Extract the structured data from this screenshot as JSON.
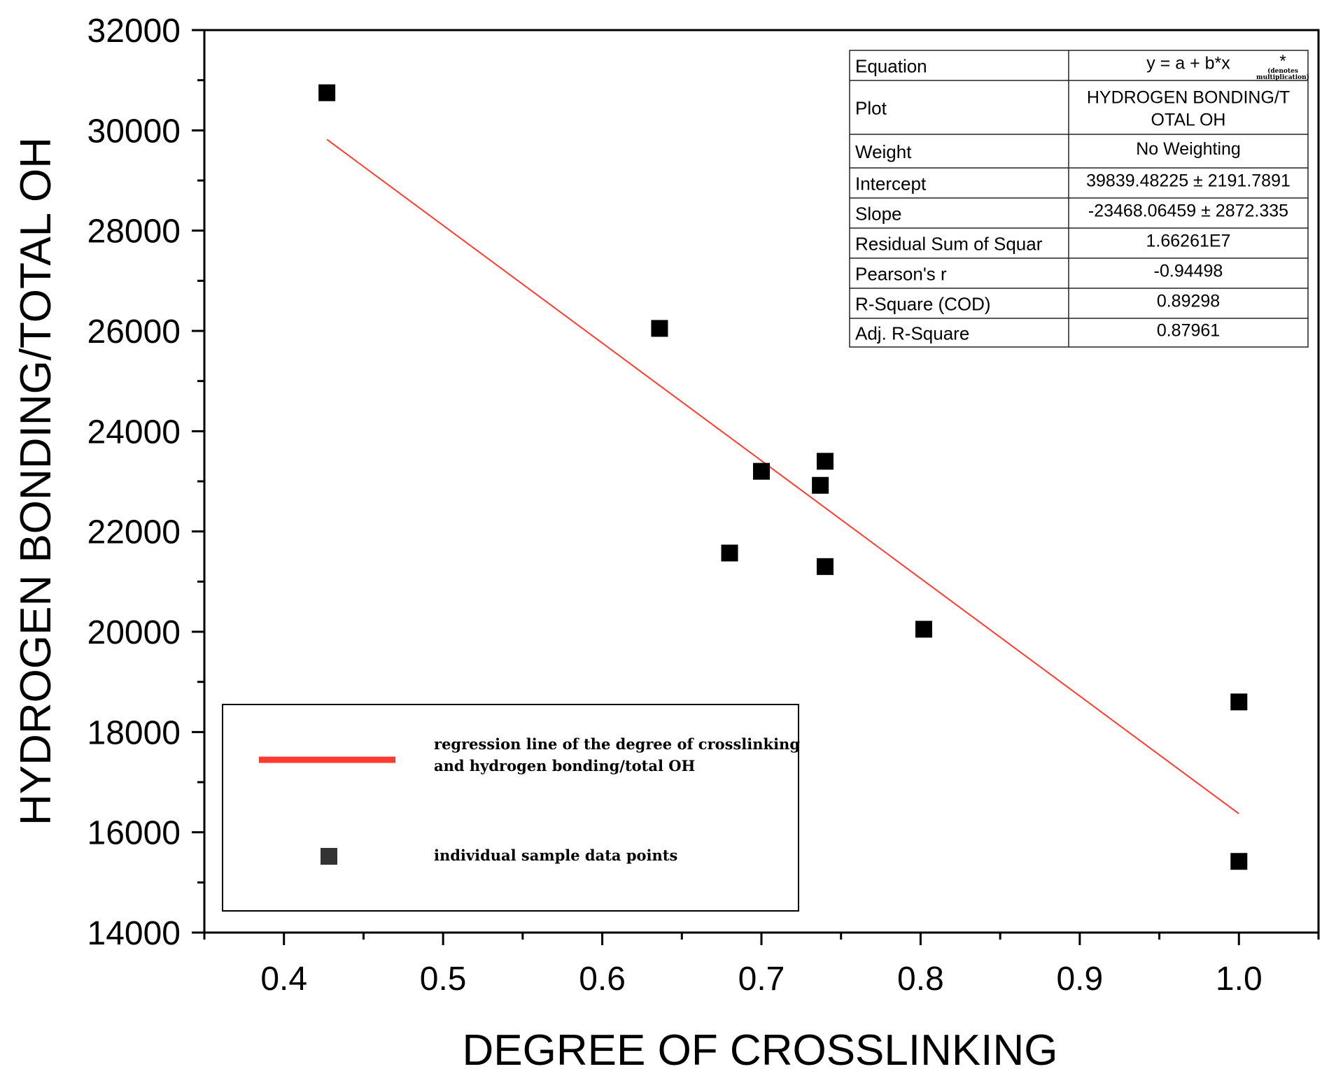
{
  "chart_data": {
    "type": "scatter",
    "xlabel": "DEGREE OF CROSSLINKING",
    "ylabel": "HYDROGEN BONDING/TOTAL OH",
    "xlim": [
      0.35,
      1.05
    ],
    "ylim": [
      14000,
      32000
    ],
    "x_ticks": [
      0.4,
      0.5,
      0.6,
      0.7,
      0.8,
      0.9,
      1.0
    ],
    "x_tick_labels": [
      "0.4",
      "0.5",
      "0.6",
      "0.7",
      "0.8",
      "0.9",
      "1.0"
    ],
    "y_ticks": [
      14000,
      16000,
      18000,
      20000,
      22000,
      24000,
      26000,
      28000,
      30000,
      32000
    ],
    "y_tick_labels": [
      "14000",
      "16000",
      "18000",
      "20000",
      "22000",
      "24000",
      "26000",
      "28000",
      "30000",
      "32000"
    ],
    "series": [
      {
        "name": "individual sample data points",
        "color": "#000000",
        "marker": "square",
        "points": [
          {
            "x": 0.427,
            "y": 30750
          },
          {
            "x": 0.636,
            "y": 26050
          },
          {
            "x": 0.68,
            "y": 21570
          },
          {
            "x": 0.7,
            "y": 23200
          },
          {
            "x": 0.737,
            "y": 22920
          },
          {
            "x": 0.74,
            "y": 23400
          },
          {
            "x": 0.74,
            "y": 21300
          },
          {
            "x": 0.802,
            "y": 20050
          },
          {
            "x": 1.0,
            "y": 18600
          },
          {
            "x": 1.0,
            "y": 15420
          }
        ]
      }
    ],
    "regression": {
      "name": "regression line of the degree of crosslinking and hydrogen bonding/total OH",
      "label_line1": "regression line of the degree of crosslinking",
      "label_line2": "and hydrogen bonding/total OH",
      "color": "#ff3b30",
      "intercept": 39839.48225,
      "slope": -23468.06459,
      "x_range": [
        0.427,
        1.0
      ]
    },
    "legend": {
      "placement": "bottom-left",
      "entries": [
        {
          "label_line1": "regression line of the degree of crosslinking",
          "label_line2": "and hydrogen bonding/total OH",
          "color": "#ff3b30",
          "symbol": "line"
        },
        {
          "label_line1": "individual sample data points",
          "label_line2": "",
          "color": "#000000",
          "symbol": "square"
        }
      ]
    },
    "stats_table": {
      "placement": "top-right",
      "rows": [
        {
          "label": "Equation",
          "value": "y = a + b*x",
          "star": "*",
          "note_line1": "(denotes",
          "note_line2": "multiplication)"
        },
        {
          "label": "Plot",
          "value_line1": "HYDROGEN BONDING/T",
          "value_line2": "OTAL OH"
        },
        {
          "label": "Weight",
          "value": "No Weighting"
        },
        {
          "label": "Intercept",
          "value": "39839.48225 ± 2191.7891"
        },
        {
          "label": "Slope",
          "value": "-23468.06459 ± 2872.335"
        },
        {
          "label": "Residual Sum of Squar",
          "value": "1.66261E7"
        },
        {
          "label": "Pearson's r",
          "value": "-0.94498"
        },
        {
          "label": "R-Square (COD)",
          "value": "0.89298"
        },
        {
          "label": "Adj. R-Square",
          "value": "0.87961"
        }
      ]
    }
  }
}
